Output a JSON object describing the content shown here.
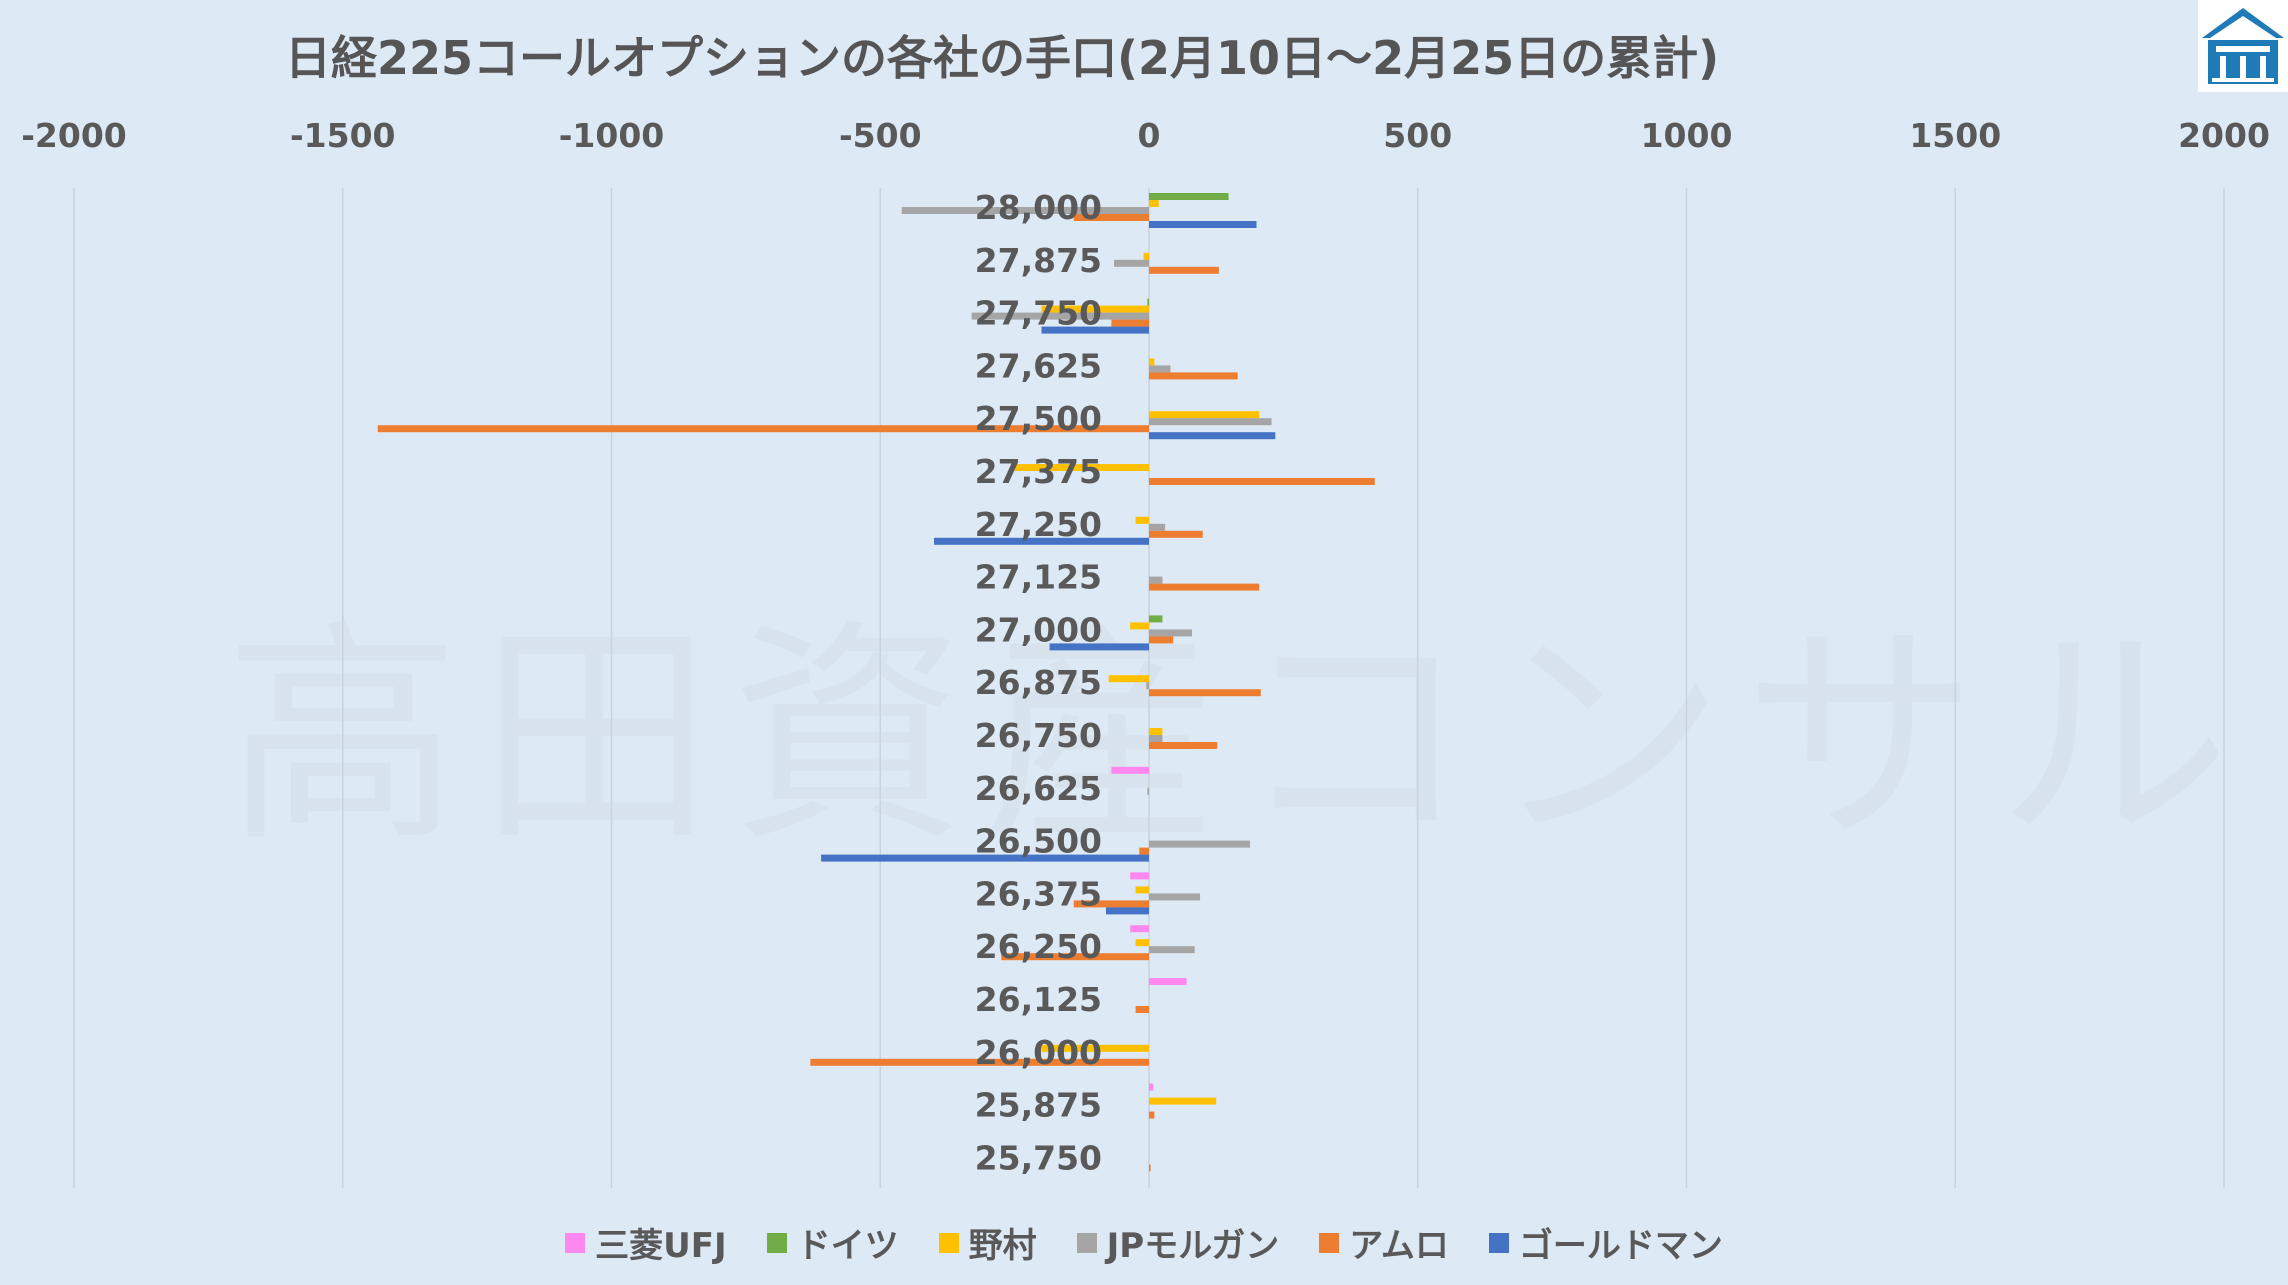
{
  "title": "日経225コールオプションの各社の手口(2月10日～2月25日の累計)",
  "watermark": "高田資産コンサル",
  "chart_data": {
    "type": "bar",
    "orientation": "horizontal",
    "xlim": [
      -2000,
      2000
    ],
    "x_ticks": [
      "-2000",
      "-1500",
      "-1000",
      "-500",
      "0",
      "500",
      "1000",
      "1500",
      "2000"
    ],
    "x_tick_values": [
      -2000,
      -1500,
      -1000,
      -500,
      0,
      500,
      1000,
      1500,
      2000
    ],
    "categories": [
      "28,000",
      "27,875",
      "27,750",
      "27,625",
      "27,500",
      "27,375",
      "27,250",
      "27,125",
      "27,000",
      "26,875",
      "26,750",
      "26,625",
      "26,500",
      "26,375",
      "26,250",
      "26,125",
      "26,000",
      "25,875",
      "25,750"
    ],
    "series": [
      {
        "name": "三菱UFJ",
        "color": "#ff88f0",
        "values": [
          0,
          0,
          0,
          0,
          0,
          0,
          0,
          0,
          0,
          0,
          0,
          -70,
          0,
          -35,
          -35,
          70,
          0,
          8,
          0
        ]
      },
      {
        "name": "ドイツ",
        "color": "#70ad47",
        "values": [
          148,
          0,
          -3,
          0,
          0,
          0,
          0,
          0,
          25,
          0,
          0,
          0,
          0,
          0,
          0,
          0,
          0,
          0,
          0
        ]
      },
      {
        "name": "野村",
        "color": "#ffc000",
        "values": [
          18,
          -10,
          -200,
          10,
          205,
          -250,
          -25,
          0,
          -35,
          -75,
          25,
          0,
          0,
          -25,
          -25,
          0,
          -200,
          125,
          0
        ]
      },
      {
        "name": "JPモルガン",
        "color": "#a5a5a5",
        "values": [
          -460,
          -65,
          -330,
          40,
          228,
          0,
          30,
          25,
          80,
          -5,
          25,
          -3,
          188,
          95,
          85,
          0,
          0,
          0,
          0
        ]
      },
      {
        "name": "アムロ",
        "color": "#ed7d31",
        "values": [
          -140,
          130,
          -70,
          165,
          -1435,
          420,
          100,
          205,
          45,
          208,
          127,
          0,
          -18,
          -140,
          -275,
          -25,
          -630,
          10,
          3
        ]
      },
      {
        "name": "ゴールドマン",
        "color": "#4472c4",
        "values": [
          200,
          0,
          -200,
          0,
          235,
          0,
          -400,
          0,
          -185,
          0,
          0,
          0,
          -610,
          -80,
          0,
          0,
          0,
          0,
          0
        ]
      }
    ]
  }
}
